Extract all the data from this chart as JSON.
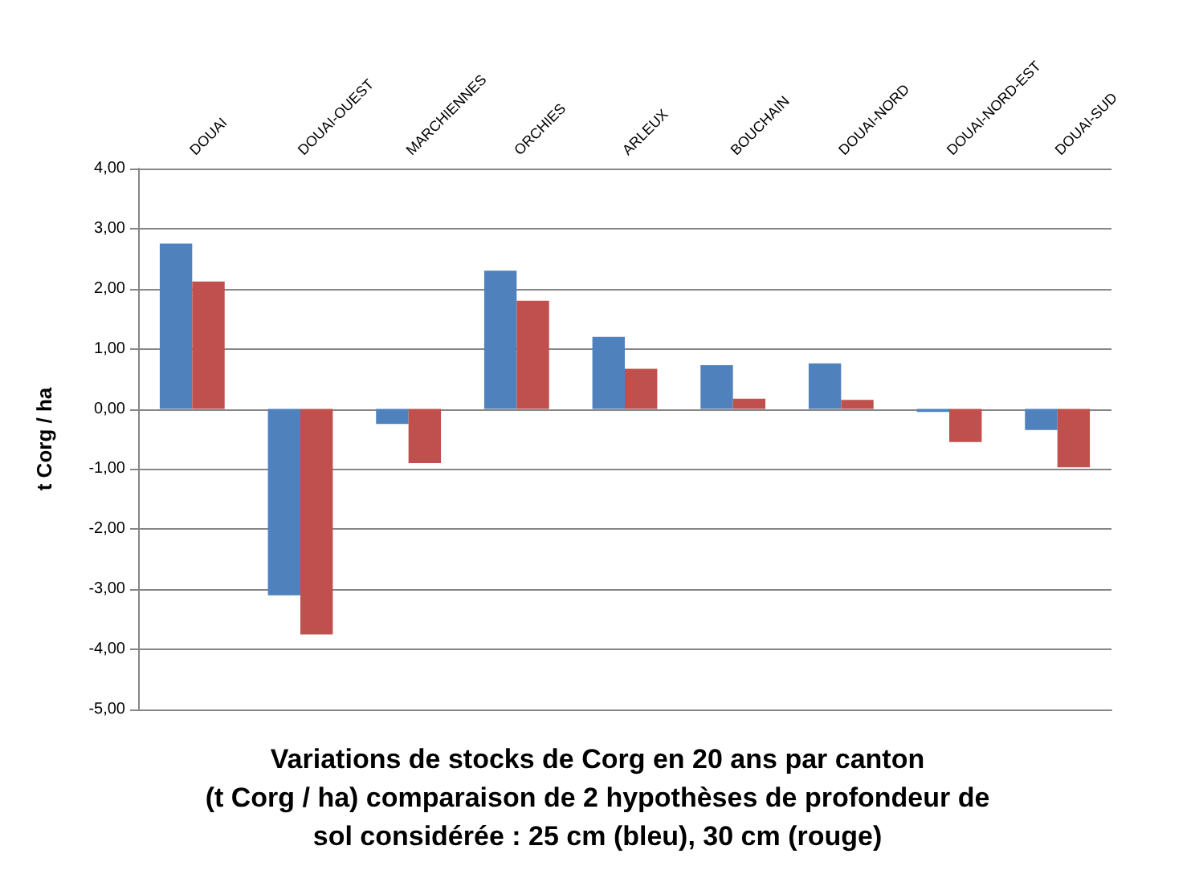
{
  "chart_data": {
    "type": "bar",
    "title": "Variations de stocks de Corg en 20 ans par canton\n(t Corg / ha) comparaison de 2 hypothèses de profondeur de\nsol considérée : 25 cm (bleu), 30 cm (rouge)",
    "ylabel": "t Corg / ha",
    "categories": [
      "DOUAI",
      "DOUAI-OUEST",
      "MARCHIENNES",
      "ORCHIES",
      "ARLEUX",
      "BOUCHAIN",
      "DOUAI-NORD",
      "DOUAI-NORD-EST",
      "DOUAI-SUD"
    ],
    "series": [
      {
        "color": "#4f81bd",
        "values": [
          2.75,
          -3.1,
          -0.25,
          2.3,
          1.2,
          0.73,
          0.76,
          -0.05,
          -0.35
        ]
      },
      {
        "color": "#c0504d",
        "values": [
          2.12,
          -3.75,
          -0.9,
          1.8,
          0.67,
          0.17,
          0.15,
          -0.55,
          -0.97
        ]
      }
    ],
    "ylim": [
      -5,
      4
    ],
    "yticks": [
      {
        "value": -5,
        "label": "-5,00"
      },
      {
        "value": -4,
        "label": "-4,00"
      },
      {
        "value": -3,
        "label": "-3,00"
      },
      {
        "value": -2,
        "label": "-2,00"
      },
      {
        "value": -1,
        "label": "-1,00"
      },
      {
        "value": 0,
        "label": "0,00"
      },
      {
        "value": 1,
        "label": "1,00"
      },
      {
        "value": 2,
        "label": "2,00"
      },
      {
        "value": 3,
        "label": "3,00"
      },
      {
        "value": 4,
        "label": "4,00"
      }
    ],
    "grid": "y"
  }
}
